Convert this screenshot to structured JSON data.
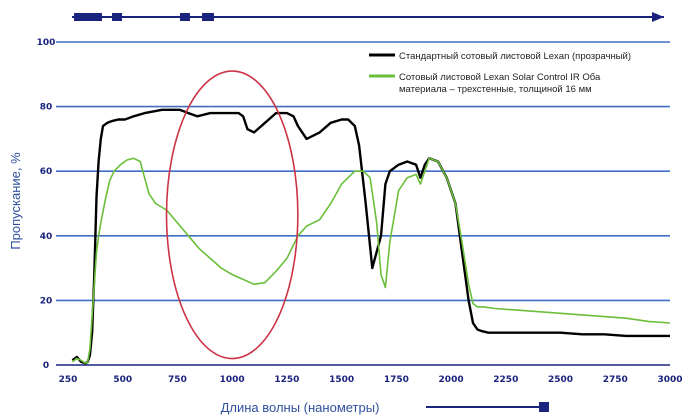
{
  "chart_data": {
    "type": "line",
    "xlabel": "Длина волны (нанометры)",
    "ylabel": "Пропускание, %",
    "x_tick_labels": [
      "250",
      "500",
      "750",
      "1000",
      "1250",
      "1500",
      "1750",
      "2000",
      "2250",
      "2500",
      "2750",
      "3000"
    ],
    "y_tick_labels": [
      "0",
      "20",
      "40",
      "60",
      "80",
      "100"
    ],
    "xlim": [
      250,
      3000
    ],
    "ylim": [
      0,
      100
    ],
    "grid": true,
    "legend_position": "top-right",
    "series": [
      {
        "name": "Стандартный сотовый листовой Lexan (прозрачный)",
        "color": "#000000",
        "x": [
          270,
          290,
          310,
          330,
          340,
          350,
          360,
          370,
          380,
          390,
          400,
          410,
          430,
          450,
          480,
          510,
          550,
          600,
          640,
          680,
          720,
          760,
          780,
          800,
          840,
          900,
          950,
          1000,
          1030,
          1050,
          1070,
          1100,
          1150,
          1200,
          1250,
          1280,
          1300,
          1340,
          1400,
          1450,
          1500,
          1530,
          1560,
          1580,
          1610,
          1640,
          1680,
          1700,
          1720,
          1760,
          1800,
          1840,
          1860,
          1880,
          1900,
          1940,
          1980,
          2020,
          2050,
          2080,
          2100,
          2120,
          2140,
          2170,
          2200,
          2250,
          2300,
          2400,
          2500,
          2600,
          2700,
          2800,
          2900,
          3000
        ],
        "y": [
          1.5,
          2.5,
          1,
          0.5,
          1,
          3,
          10,
          28,
          52,
          63,
          70,
          74,
          75,
          75.5,
          76,
          76,
          77,
          78,
          78.5,
          79,
          79,
          79,
          78.5,
          78,
          77,
          78,
          78,
          78,
          78,
          77,
          73,
          72,
          75,
          78,
          78,
          77,
          74,
          70,
          72,
          75,
          76,
          76,
          74,
          68,
          50,
          30,
          40,
          56,
          60,
          62,
          63,
          62,
          58,
          62,
          64,
          63,
          58,
          50,
          35,
          20,
          13,
          11,
          10.5,
          10,
          10,
          10,
          10,
          10,
          10,
          9.5,
          9.5,
          9,
          9,
          9
        ]
      },
      {
        "name": "Сотовый листовой Lexan Solar Control IR Оба материала – трехстенные, толщиной 16 мм",
        "color": "#6abf3a",
        "x": [
          270,
          290,
          310,
          330,
          340,
          350,
          360,
          370,
          380,
          390,
          400,
          420,
          440,
          460,
          490,
          520,
          550,
          580,
          600,
          620,
          650,
          700,
          750,
          800,
          850,
          900,
          950,
          1000,
          1050,
          1100,
          1150,
          1200,
          1250,
          1300,
          1340,
          1400,
          1450,
          1500,
          1560,
          1600,
          1630,
          1660,
          1680,
          1700,
          1720,
          1760,
          1800,
          1840,
          1860,
          1880,
          1900,
          1940,
          1980,
          2020,
          2050,
          2080,
          2100,
          2120,
          2150,
          2200,
          2300,
          2400,
          2500,
          2600,
          2700,
          2800,
          2900,
          3000
        ],
        "y": [
          1,
          2,
          1.5,
          0.5,
          1,
          5,
          15,
          25,
          35,
          40,
          44,
          51,
          57,
          60,
          62,
          63.5,
          64,
          63,
          58,
          53,
          50,
          48,
          44,
          40,
          36,
          33,
          30,
          28,
          26.5,
          25,
          25.5,
          29,
          33,
          40,
          43,
          45,
          50,
          56,
          60,
          60,
          58,
          44,
          28,
          24,
          38,
          54,
          58,
          59,
          56,
          60,
          64,
          63,
          58,
          50,
          38,
          25,
          19,
          18,
          18,
          17.5,
          17,
          16.5,
          16,
          15.5,
          15,
          14.5,
          13.5,
          13
        ]
      }
    ],
    "annotations": [
      {
        "shape": "ellipse",
        "color": "#cc3344",
        "cx_data": 1000,
        "cy_data": 46.5,
        "rx_data": 300,
        "ry_data": 44.5
      }
    ]
  }
}
